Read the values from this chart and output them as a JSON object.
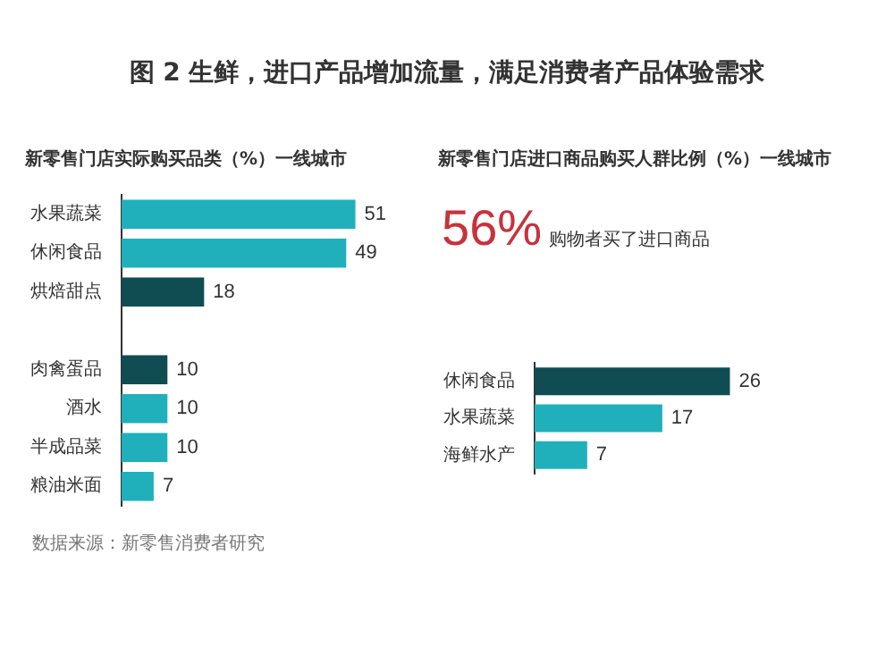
{
  "chart_data": [
    {
      "type": "other",
      "title": "图 2  生鲜，进口产品增加流量，满足消费者产品体验需求",
      "annotations": [
        "数据来源：新零售消费者研究"
      ]
    },
    {
      "type": "bar",
      "orientation": "horizontal",
      "title": "新零售门店实际购买品类（%）一线城市",
      "categories": [
        "水果蔬菜",
        "休闲食品",
        "烘焙甜点",
        null,
        "肉禽蛋品",
        "酒水",
        "半成品菜",
        "粮油米面"
      ],
      "values": [
        51,
        49,
        18,
        null,
        10,
        10,
        10,
        7
      ],
      "colors": [
        "#1fb0bb",
        "#1fb0bb",
        "#0f4d52",
        "#1fb0bb",
        "#0f4d52",
        "#1fb0bb",
        "#1fb0bb",
        "#1fb0bb"
      ],
      "data_labels": true,
      "legend": false,
      "tick_labels": "y"
    },
    {
      "type": "bar",
      "orientation": "horizontal",
      "title": "新零售门店进口商品购买人群比例（%）一线城市",
      "annotations": [
        "56%",
        "购物者买了进口商品"
      ],
      "categories": [
        "休闲食品",
        "水果蔬菜",
        "海鲜水产"
      ],
      "values": [
        26,
        17,
        7
      ],
      "colors": [
        "#0f4d52",
        "#1fb0bb",
        "#1fb0bb"
      ],
      "data_labels": true,
      "legend": false,
      "tick_labels": "y"
    }
  ]
}
